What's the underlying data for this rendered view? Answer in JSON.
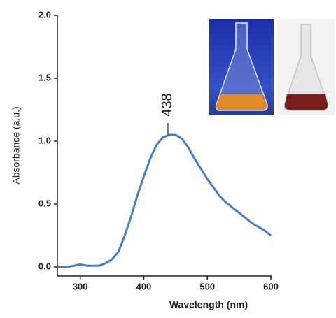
{
  "chart_data": {
    "type": "line",
    "xlabel": "Wavelength (nm)",
    "ylabel": "Absorbance (a.u.)",
    "x": [
      265,
      280,
      290,
      300,
      310,
      320,
      330,
      340,
      350,
      360,
      370,
      380,
      390,
      400,
      410,
      420,
      430,
      440,
      450,
      460,
      470,
      480,
      490,
      500,
      510,
      520,
      530,
      540,
      550,
      560,
      570,
      580,
      590,
      600
    ],
    "series": [
      {
        "color": "#4a7cc0",
        "values": [
          0.0,
          0.0,
          0.01,
          0.02,
          0.01,
          0.01,
          0.01,
          0.03,
          0.06,
          0.12,
          0.25,
          0.4,
          0.57,
          0.72,
          0.86,
          0.97,
          1.03,
          1.05,
          1.05,
          1.02,
          0.95,
          0.86,
          0.78,
          0.7,
          0.63,
          0.56,
          0.51,
          0.47,
          0.43,
          0.39,
          0.35,
          0.32,
          0.29,
          0.25
        ]
      }
    ],
    "xlim": [
      264,
      600
    ],
    "ylim": [
      -0.07,
      2.0
    ],
    "xticks": [
      300,
      400,
      500,
      600
    ],
    "yticks": [
      {
        "value": 0,
        "label": "0.0"
      },
      {
        "value": 0.5,
        "label": "0.5"
      },
      {
        "value": 1,
        "label": "1.0"
      },
      {
        "value": 1.5,
        "label": "1.5"
      },
      {
        "value": 2,
        "label": "2.0"
      }
    ],
    "annotations": [
      {
        "x": 438
      }
    ]
  }
}
